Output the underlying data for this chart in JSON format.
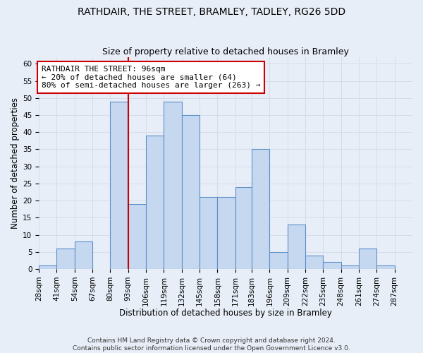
{
  "title": "RATHDAIR, THE STREET, BRAMLEY, TADLEY, RG26 5DD",
  "subtitle": "Size of property relative to detached houses in Bramley",
  "xlabel": "Distribution of detached houses by size in Bramley",
  "ylabel": "Number of detached properties",
  "bin_labels": [
    "28sqm",
    "41sqm",
    "54sqm",
    "67sqm",
    "80sqm",
    "93sqm",
    "106sqm",
    "119sqm",
    "132sqm",
    "145sqm",
    "158sqm",
    "171sqm",
    "183sqm",
    "196sqm",
    "209sqm",
    "222sqm",
    "235sqm",
    "248sqm",
    "261sqm",
    "274sqm",
    "287sqm"
  ],
  "bin_edges": [
    28,
    41,
    54,
    67,
    80,
    93,
    106,
    119,
    132,
    145,
    158,
    171,
    183,
    196,
    209,
    222,
    235,
    248,
    261,
    274,
    287
  ],
  "bar_heights": [
    1,
    6,
    8,
    0,
    49,
    19,
    39,
    49,
    45,
    21,
    21,
    24,
    35,
    5,
    13,
    4,
    2,
    1,
    6,
    1,
    0
  ],
  "bar_color": "#c5d8f0",
  "bar_edge_color": "#5b8fc9",
  "vline_x": 93,
  "vline_color": "#cc0000",
  "annotation_line1": "RATHDAIR THE STREET: 96sqm",
  "annotation_line2": "← 20% of detached houses are smaller (64)",
  "annotation_line3": "80% of semi-detached houses are larger (263) →",
  "annotation_box_color": "#cc0000",
  "annotation_box_fill": "white",
  "ylim": [
    0,
    62
  ],
  "yticks": [
    0,
    5,
    10,
    15,
    20,
    25,
    30,
    35,
    40,
    45,
    50,
    55,
    60
  ],
  "grid_color": "#d0dae8",
  "bg_color": "#e8eef8",
  "footer_line1": "Contains HM Land Registry data © Crown copyright and database right 2024.",
  "footer_line2": "Contains public sector information licensed under the Open Government Licence v3.0.",
  "title_fontsize": 10,
  "subtitle_fontsize": 9,
  "axis_label_fontsize": 8.5,
  "tick_fontsize": 7.5,
  "annotation_fontsize": 8,
  "footer_fontsize": 6.5
}
